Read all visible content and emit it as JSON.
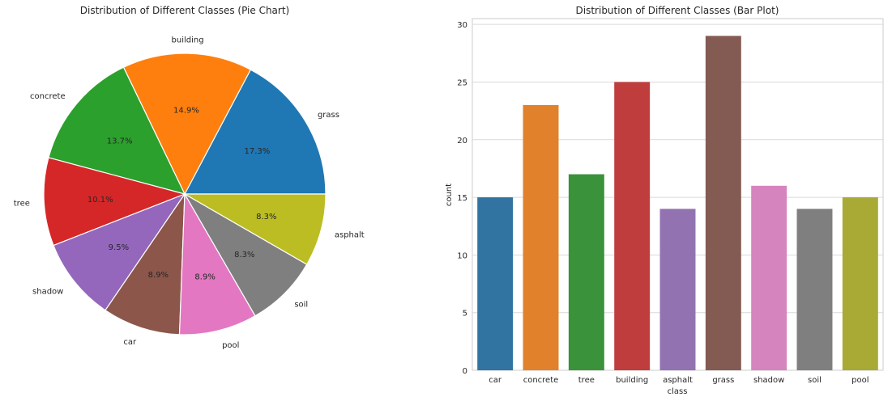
{
  "chart_data": [
    {
      "type": "pie",
      "title": "Distribution of Different Classes (Pie Chart)",
      "labels": [
        "grass",
        "building",
        "concrete",
        "tree",
        "shadow",
        "car",
        "pool",
        "soil",
        "asphalt"
      ],
      "values": [
        29,
        25,
        23,
        17,
        16,
        15,
        15,
        14,
        14
      ],
      "pct_labels": [
        "17.3%",
        "14.9%",
        "13.7%",
        "10.1%",
        "9.5%",
        "8.9%",
        "8.9%",
        "8.3%",
        "8.3%"
      ],
      "colors": [
        "#1f77b4",
        "#ff7f0e",
        "#2ca02c",
        "#d62728",
        "#9467bd",
        "#8c564b",
        "#e377c2",
        "#7f7f7f",
        "#bcbd22"
      ]
    },
    {
      "type": "bar",
      "title": "Distribution of Different Classes (Bar Plot)",
      "xlabel": "class",
      "ylabel": "count",
      "categories": [
        "car",
        "concrete",
        "tree",
        "building",
        "asphalt",
        "grass",
        "shadow",
        "soil",
        "pool"
      ],
      "values": [
        15,
        23,
        17,
        25,
        14,
        29,
        16,
        14,
        15
      ],
      "colors": [
        "#3274a1",
        "#e1812c",
        "#3a923a",
        "#c03d3e",
        "#9372b2",
        "#845b53",
        "#d684bd",
        "#7f7f7f",
        "#a9aa35"
      ],
      "ylim": [
        0,
        30.5
      ],
      "yticks": [
        0,
        5,
        10,
        15,
        20,
        25,
        30
      ],
      "grid": true
    }
  ]
}
